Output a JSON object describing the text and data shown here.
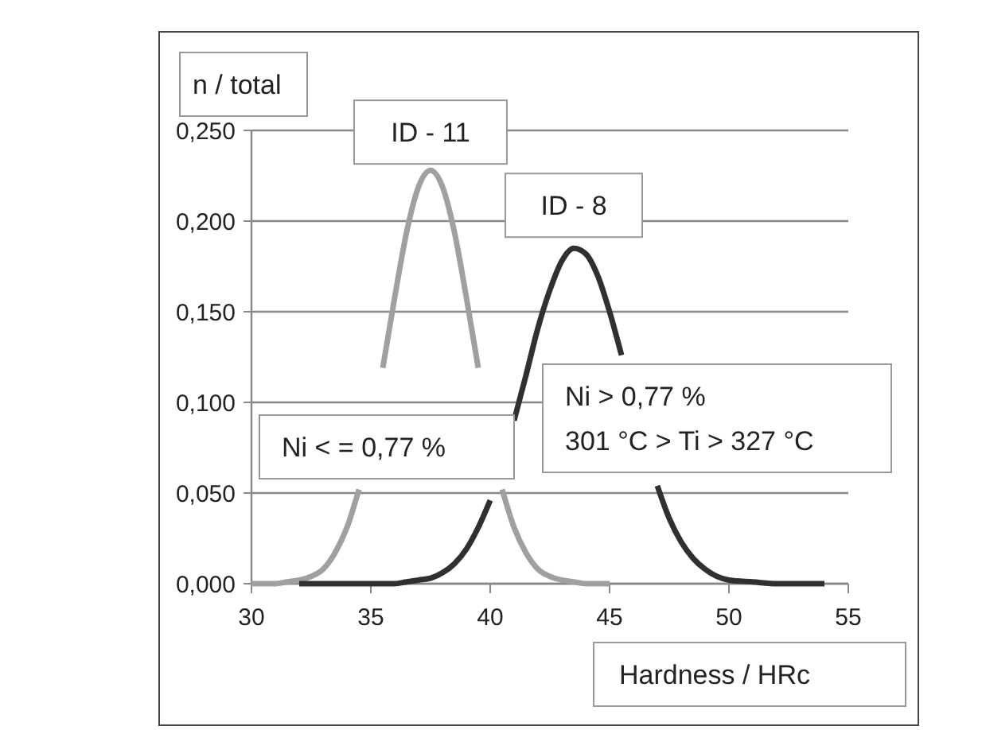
{
  "chart_data": {
    "type": "line",
    "xlabel": "Hardness / HRc",
    "ylabel": "n / total",
    "xlim": [
      30,
      55
    ],
    "xticks": [
      30,
      35,
      40,
      45,
      50,
      55
    ],
    "ylim": [
      0,
      0.25
    ],
    "yticks": [
      {
        "value": 0,
        "label": "0,000"
      },
      {
        "value": 0.05,
        "label": "0,050"
      },
      {
        "value": 0.1,
        "label": "0,100"
      },
      {
        "value": 0.15,
        "label": "0,150"
      },
      {
        "value": 0.2,
        "label": "0,200"
      },
      {
        "value": 0.25,
        "label": "0,250"
      }
    ],
    "grid": "y",
    "marker": "none",
    "line_style": "solid",
    "series": [
      {
        "name": "ID - 11",
        "color": "#a0a0a0",
        "x": [
          30,
          31,
          31.5,
          32,
          32.5,
          33,
          33.5,
          34,
          34.5,
          35,
          35.5,
          36,
          36.5,
          37,
          37.5,
          38,
          38.5,
          39,
          39.5,
          40,
          40.5,
          41,
          41.5,
          42,
          42.5,
          43,
          43.5,
          44,
          45
        ],
        "values": [
          0,
          0,
          0.001,
          0.002,
          0.004,
          0.008,
          0.017,
          0.031,
          0.052,
          null,
          0.119,
          0.158,
          0.194,
          0.219,
          0.228,
          0.219,
          0.194,
          0.158,
          0.119,
          null,
          0.052,
          0.031,
          0.017,
          0.008,
          0.004,
          0.002,
          0.001,
          0,
          0
        ]
      },
      {
        "name": "ID - 8",
        "color": "#303030",
        "x": [
          32,
          34,
          35,
          36,
          36.5,
          37,
          37.5,
          38,
          38.5,
          39,
          39.5,
          40,
          40.5,
          41,
          41.5,
          42,
          42.5,
          43,
          43.5,
          44,
          44.5,
          45,
          45.5,
          46,
          46.5,
          47,
          47.5,
          48,
          48.5,
          49,
          49.5,
          50,
          51,
          52,
          54
        ],
        "values": [
          0,
          0,
          0,
          0,
          0.001,
          0.002,
          0.003,
          0.006,
          0.011,
          0.019,
          0.031,
          0.046,
          null,
          0.09,
          0.115,
          0.141,
          0.162,
          0.178,
          0.185,
          0.182,
          0.17,
          0.15,
          0.126,
          null,
          null,
          0.054,
          0.036,
          0.023,
          0.014,
          0.008,
          0.004,
          0.002,
          0.001,
          0,
          0
        ]
      }
    ],
    "annotations": [
      "Ni < = 0,77 %",
      "Ni > 0,77 %\n301 °C > Ti > 327 °C"
    ]
  }
}
